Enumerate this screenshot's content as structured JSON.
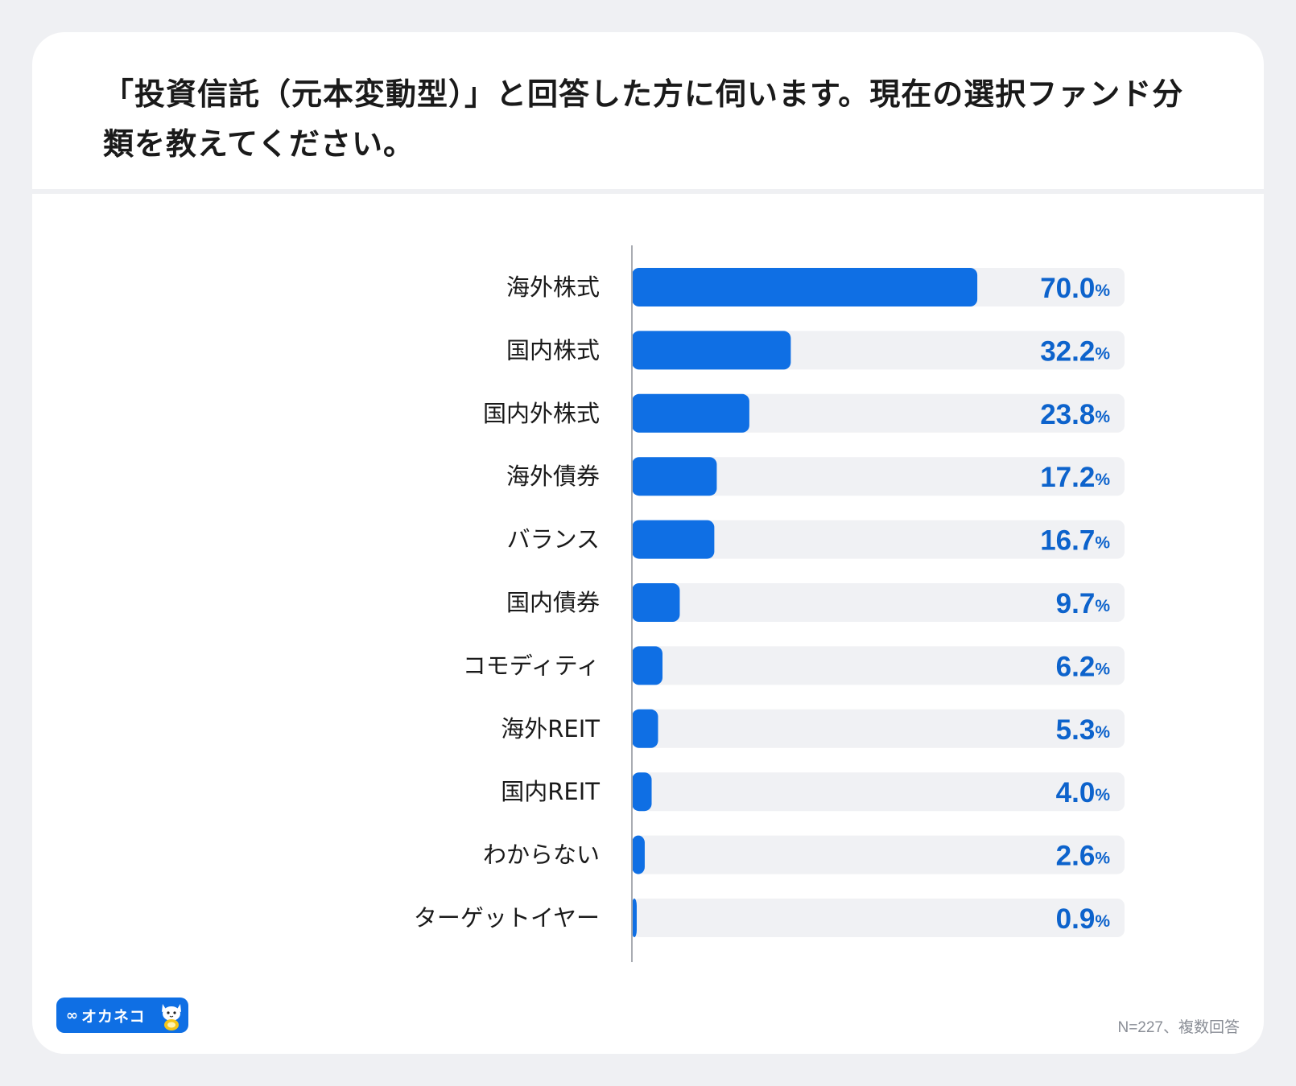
{
  "title": "「投資信託（元本変動型）」と回答した方に伺います。現在の選択ファンド分類を教えてください。",
  "brand": {
    "name": "オカネコ",
    "mark": "∞",
    "accent": "#0f6fe4"
  },
  "footnote": "N=227、複数回答",
  "chart_data": {
    "type": "bar",
    "orientation": "horizontal",
    "categories": [
      "海外株式",
      "国内株式",
      "国内外株式",
      "海外債券",
      "バランス",
      "国内債券",
      "コモディティ",
      "海外REIT",
      "国内REIT",
      "わからない",
      "ターゲットイヤー"
    ],
    "values": [
      70.0,
      32.2,
      23.8,
      17.2,
      16.7,
      9.7,
      6.2,
      5.3,
      4.0,
      2.6,
      0.9
    ],
    "value_labels": [
      "70.0",
      "32.2",
      "23.8",
      "17.2",
      "16.7",
      "9.7",
      "6.2",
      "5.3",
      "4.0",
      "2.6",
      "0.9"
    ],
    "unit": "%",
    "xlim": [
      0,
      100
    ],
    "title": "「投資信託（元本変動型）」と回答した方に伺います。現在の選択ファンド分類を教えてください。",
    "bar_color": "#0f6fe4",
    "track_color": "#f0f1f4",
    "value_color": "#0d63cc"
  }
}
